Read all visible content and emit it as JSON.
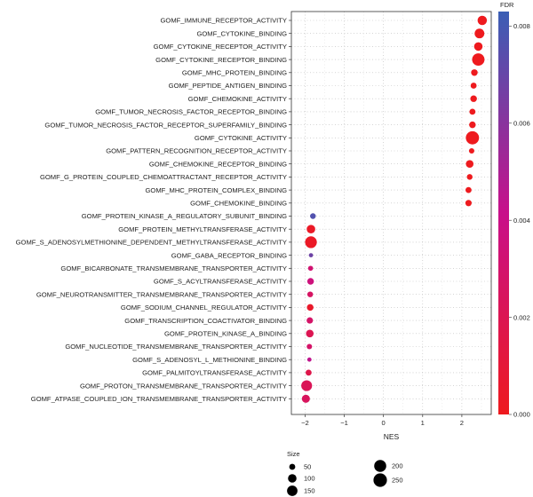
{
  "chart_data": {
    "type": "scatter",
    "xlabel": "NES",
    "ylabel": "",
    "xlim": [
      -2.35,
      2.75
    ],
    "x_ticks": [
      -2,
      -1,
      0,
      1,
      2
    ],
    "grid": true,
    "categories": [
      "GOMF_IMMUNE_RECEPTOR_ACTIVITY",
      "GOMF_CYTOKINE_BINDING",
      "GOMF_CYTOKINE_RECEPTOR_ACTIVITY",
      "GOMF_CYTOKINE_RECEPTOR_BINDING",
      "GOMF_MHC_PROTEIN_BINDING",
      "GOMF_PEPTIDE_ANTIGEN_BINDING",
      "GOMF_CHEMOKINE_ACTIVITY",
      "GOMF_TUMOR_NECROSIS_FACTOR_RECEPTOR_BINDING",
      "GOMF_TUMOR_NECROSIS_FACTOR_RECEPTOR_SUPERFAMILY_BINDING",
      "GOMF_CYTOKINE_ACTIVITY",
      "GOMF_PATTERN_RECOGNITION_RECEPTOR_ACTIVITY",
      "GOMF_CHEMOKINE_RECEPTOR_BINDING",
      "GOMF_G_PROTEIN_COUPLED_CHEMOATTRACTANT_RECEPTOR_ACTIVITY",
      "GOMF_MHC_PROTEIN_COMPLEX_BINDING",
      "GOMF_CHEMOKINE_BINDING",
      "GOMF_PROTEIN_KINASE_A_REGULATORY_SUBUNIT_BINDING",
      "GOMF_PROTEIN_METHYLTRANSFERASE_ACTIVITY",
      "GOMF_S_ADENOSYLMETHIONINE_DEPENDENT_METHYLTRANSFERASE_ACTIVITY",
      "GOMF_GABA_RECEPTOR_BINDING",
      "GOMF_BICARBONATE_TRANSMEMBRANE_TRANSPORTER_ACTIVITY",
      "GOMF_S_ACYLTRANSFERASE_ACTIVITY",
      "GOMF_NEUROTRANSMITTER_TRANSMEMBRANE_TRANSPORTER_ACTIVITY",
      "GOMF_SODIUM_CHANNEL_REGULATOR_ACTIVITY",
      "GOMF_TRANSCRIPTION_COACTIVATOR_BINDING",
      "GOMF_PROTEIN_KINASE_A_BINDING",
      "GOMF_NUCLEOTIDE_TRANSMEMBRANE_TRANSPORTER_ACTIVITY",
      "GOMF_S_ADENOSYL_L_METHIONINE_BINDING",
      "GOMF_PALMITOYLTRANSFERASE_ACTIVITY",
      "GOMF_PROTON_TRANSMEMBRANE_TRANSPORTER_ACTIVITY",
      "GOMF_ATPASE_COUPLED_ION_TRANSMEMBRANE_TRANSPORTER_ACTIVITY"
    ],
    "points": [
      {
        "nes": 2.52,
        "size": 120,
        "fdr": 0.0
      },
      {
        "nes": 2.45,
        "size": 130,
        "fdr": 0.0
      },
      {
        "nes": 2.42,
        "size": 100,
        "fdr": 0.0
      },
      {
        "nes": 2.42,
        "size": 210,
        "fdr": 0.0
      },
      {
        "nes": 2.32,
        "size": 60,
        "fdr": 0.0
      },
      {
        "nes": 2.3,
        "size": 50,
        "fdr": 0.0
      },
      {
        "nes": 2.3,
        "size": 60,
        "fdr": 0.0
      },
      {
        "nes": 2.27,
        "size": 50,
        "fdr": 0.0
      },
      {
        "nes": 2.27,
        "size": 60,
        "fdr": 0.0
      },
      {
        "nes": 2.27,
        "size": 240,
        "fdr": 0.0
      },
      {
        "nes": 2.25,
        "size": 40,
        "fdr": 0.0
      },
      {
        "nes": 2.2,
        "size": 80,
        "fdr": 0.0
      },
      {
        "nes": 2.2,
        "size": 45,
        "fdr": 0.0
      },
      {
        "nes": 2.17,
        "size": 50,
        "fdr": 0.0
      },
      {
        "nes": 2.17,
        "size": 55,
        "fdr": 0.0
      },
      {
        "nes": -1.8,
        "size": 45,
        "fdr": 0.0076
      },
      {
        "nes": -1.85,
        "size": 100,
        "fdr": 0.0003
      },
      {
        "nes": -1.85,
        "size": 190,
        "fdr": 0.0003
      },
      {
        "nes": -1.85,
        "size": 25,
        "fdr": 0.0068
      },
      {
        "nes": -1.86,
        "size": 35,
        "fdr": 0.0032
      },
      {
        "nes": -1.86,
        "size": 60,
        "fdr": 0.0036
      },
      {
        "nes": -1.87,
        "size": 45,
        "fdr": 0.0026
      },
      {
        "nes": -1.87,
        "size": 60,
        "fdr": 0.0005
      },
      {
        "nes": -1.88,
        "size": 55,
        "fdr": 0.0028
      },
      {
        "nes": -1.88,
        "size": 80,
        "fdr": 0.002
      },
      {
        "nes": -1.89,
        "size": 40,
        "fdr": 0.0028
      },
      {
        "nes": -1.89,
        "size": 25,
        "fdr": 0.0044
      },
      {
        "nes": -1.91,
        "size": 50,
        "fdr": 0.0017
      },
      {
        "nes": -1.96,
        "size": 160,
        "fdr": 0.0022
      },
      {
        "nes": -1.98,
        "size": 90,
        "fdr": 0.0024
      }
    ],
    "color_legend": {
      "title": "FDR",
      "min": 0.0,
      "max": 0.0083,
      "ticks": [
        "0.000",
        "0.002",
        "0.004",
        "0.006",
        "0.008"
      ],
      "low_color": "#ee1a1e",
      "mid_color": "#c8108a",
      "high_color": "#3a5fb5"
    },
    "size_legend": {
      "title": "Size",
      "entries": [
        {
          "label": "50",
          "value": 50
        },
        {
          "label": "100",
          "value": 100
        },
        {
          "label": "150",
          "value": 150
        },
        {
          "label": "200",
          "value": 200
        },
        {
          "label": "250",
          "value": 250
        }
      ]
    }
  }
}
